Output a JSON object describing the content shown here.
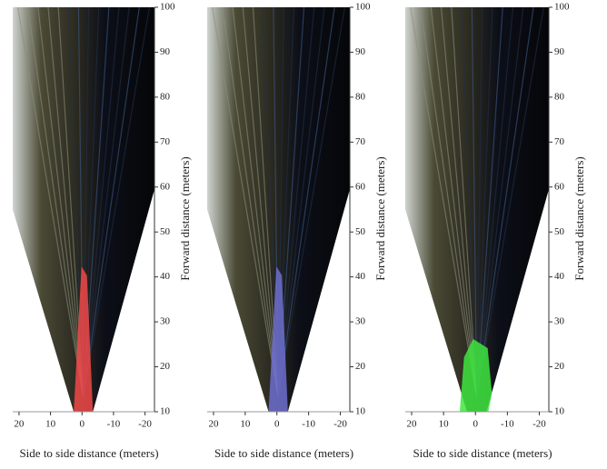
{
  "chart_data": [
    {
      "type": "image",
      "xlabel": "Side to side distance (meters)",
      "ylabel": "Forward distance (meters)",
      "xlim": [
        22,
        -23
      ],
      "ylim": [
        10,
        100
      ],
      "xticks": [
        20,
        10,
        0,
        -10,
        -20
      ],
      "yticks": [
        10,
        20,
        30,
        40,
        50,
        60,
        70,
        80,
        90,
        100
      ],
      "overlay_color": "#f04848"
    },
    {
      "type": "image",
      "xlabel": "Side to side distance (meters)",
      "ylabel": "Forward distance (meters)",
      "xlim": [
        22,
        -23
      ],
      "ylim": [
        10,
        100
      ],
      "xticks": [
        20,
        10,
        0,
        -10,
        -20
      ],
      "yticks": [
        10,
        20,
        30,
        40,
        50,
        60,
        70,
        80,
        90,
        100
      ],
      "overlay_color": "#6d6fcf"
    },
    {
      "type": "image",
      "xlabel": "Side to side distance (meters)",
      "ylabel": "Forward distance (meters)",
      "xlim": [
        22,
        -23
      ],
      "ylim": [
        10,
        100
      ],
      "xticks": [
        20,
        10,
        0,
        -10,
        -20
      ],
      "yticks": [
        10,
        20,
        30,
        40,
        50,
        60,
        70,
        80,
        90,
        100
      ],
      "overlay_color": "#3ee63e"
    }
  ]
}
